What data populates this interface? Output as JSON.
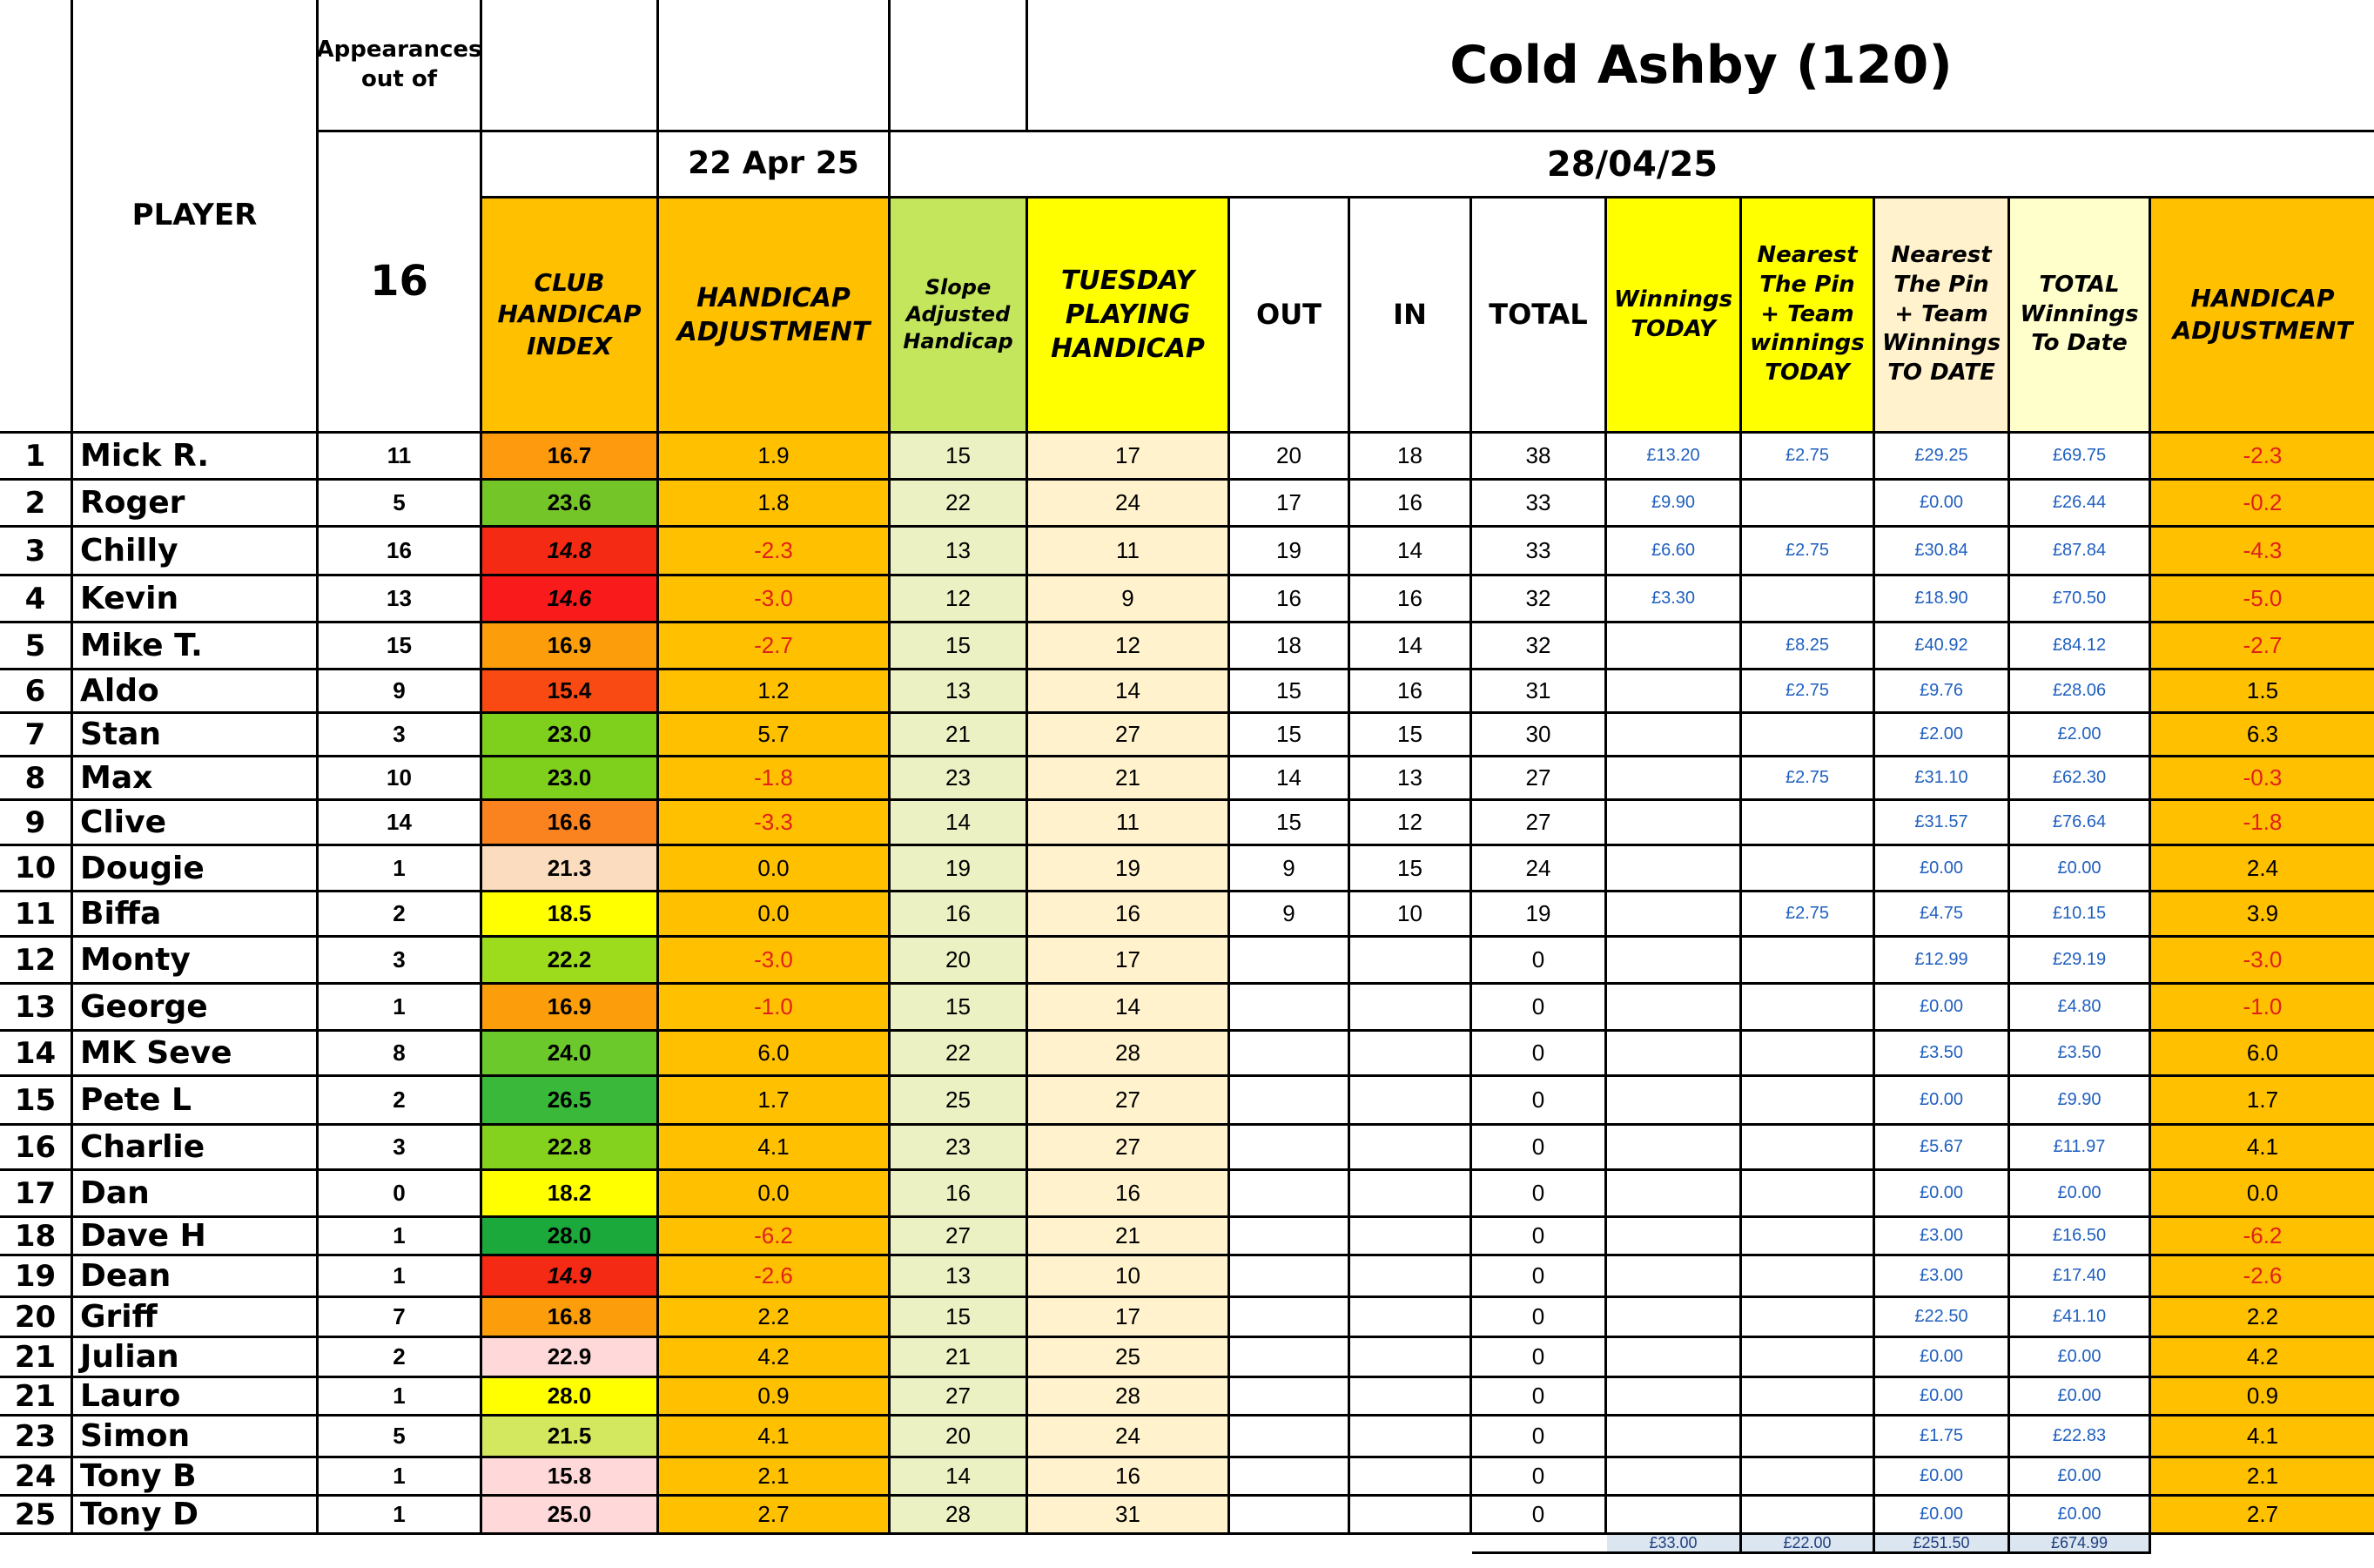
{
  "title": "Cold Ashby (120)",
  "date_prev": "22 Apr 25",
  "date_curr": "28/04/25",
  "appearances_label": "Appearances out of",
  "appearances_total": "16",
  "headers": {
    "player": "PLAYER",
    "club_index": "CLUB HANDICAP INDEX",
    "adj_prev": "HANDICAP ADJUSTMENT",
    "slope": "Slope Adjusted Handicap",
    "tuesday": "TUESDAY PLAYING HANDICAP",
    "out": "OUT",
    "in": "IN",
    "total": "TOTAL",
    "win_today": "Winnings TODAY",
    "ntp_today": "Nearest The Pin + Team winnings TODAY",
    "ntp_date": "Nearest The Pin + Team Winnings TO DATE",
    "total_win": "TOTAL Winnings To Date",
    "adj_new": "HANDICAP ADJUSTMENT"
  },
  "colors": {
    "orange": "#ffc000",
    "yellow": "#ffff00",
    "lightyellow": "#ffffcc",
    "slopegreen": "#c3e65c",
    "cream": "#fff2cc",
    "slopelight": "#ebf1c2",
    "negative": "#e0201b",
    "money": "#1f5fbf",
    "totals_bg": "#dce6f1"
  },
  "rows": [
    {
      "rank": "1",
      "name": "Mick R.",
      "apps": "11",
      "index": "16.7",
      "index_color": "#fd9a0d",
      "adj": "1.9",
      "slope": "15",
      "tues": "17",
      "out": "20",
      "in": "18",
      "total": "38",
      "win": "£13.20",
      "ntp": "£2.75",
      "ntpd": "£29.25",
      "tw": "£69.75",
      "nadj": "-2.3"
    },
    {
      "rank": "2",
      "name": "Roger",
      "apps": "5",
      "index": "23.6",
      "index_color": "#74c628",
      "adj": "1.8",
      "slope": "22",
      "tues": "24",
      "out": "17",
      "in": "16",
      "total": "33",
      "win": "£9.90",
      "ntp": "",
      "ntpd": "£0.00",
      "tw": "£26.44",
      "nadj": "-0.2"
    },
    {
      "rank": "3",
      "name": "Chilly",
      "apps": "16",
      "index": "14.8",
      "index_color": "#f42a15",
      "adj": "-2.3",
      "slope": "13",
      "tues": "11",
      "out": "19",
      "in": "14",
      "total": "33",
      "win": "£6.60",
      "ntp": "£2.75",
      "ntpd": "£30.84",
      "tw": "£87.84",
      "nadj": "-4.3"
    },
    {
      "rank": "4",
      "name": "Kevin",
      "apps": "13",
      "index": "14.6",
      "index_color": "#f91b1b",
      "adj": "-3.0",
      "slope": "12",
      "tues": "9",
      "out": "16",
      "in": "16",
      "total": "32",
      "win": "£3.30",
      "ntp": "",
      "ntpd": "£18.90",
      "tw": "£70.50",
      "nadj": "-5.0"
    },
    {
      "rank": "5",
      "name": "Mike T.",
      "apps": "15",
      "index": "16.9",
      "index_color": "#fc9e0c",
      "adj": "-2.7",
      "slope": "15",
      "tues": "12",
      "out": "18",
      "in": "14",
      "total": "32",
      "win": "",
      "ntp": "£8.25",
      "ntpd": "£40.92",
      "tw": "£84.12",
      "nadj": "-2.7"
    },
    {
      "rank": "6",
      "name": "Aldo",
      "apps": "9",
      "index": "15.4",
      "index_color": "#fa4a14",
      "adj": "1.2",
      "slope": "13",
      "tues": "14",
      "out": "15",
      "in": "16",
      "total": "31",
      "win": "",
      "ntp": "£2.75",
      "ntpd": "£9.76",
      "tw": "£28.06",
      "nadj": "1.5"
    },
    {
      "rank": "7",
      "name": "Stan",
      "apps": "3",
      "index": "23.0",
      "index_color": "#7ed01c",
      "adj": "5.7",
      "slope": "21",
      "tues": "27",
      "out": "15",
      "in": "15",
      "total": "30",
      "win": "",
      "ntp": "",
      "ntpd": "£2.00",
      "tw": "£2.00",
      "nadj": "6.3"
    },
    {
      "rank": "8",
      "name": "Max",
      "apps": "10",
      "index": "23.0",
      "index_color": "#7ed01c",
      "adj": "-1.8",
      "slope": "23",
      "tues": "21",
      "out": "14",
      "in": "13",
      "total": "27",
      "win": "",
      "ntp": "£2.75",
      "ntpd": "£31.10",
      "tw": "£62.30",
      "nadj": "-0.3"
    },
    {
      "rank": "9",
      "name": "Clive",
      "apps": "14",
      "index": "16.6",
      "index_color": "#fa8320",
      "adj": "-3.3",
      "slope": "14",
      "tues": "11",
      "out": "15",
      "in": "12",
      "total": "27",
      "win": "",
      "ntp": "",
      "ntpd": "£31.57",
      "tw": "£76.64",
      "nadj": "-1.8"
    },
    {
      "rank": "10",
      "name": "Dougie",
      "apps": "1",
      "index": "21.3",
      "index_color": "#fcdcbf",
      "adj": "0.0",
      "slope": "19",
      "tues": "19",
      "out": "9",
      "in": "15",
      "total": "24",
      "win": "",
      "ntp": "",
      "ntpd": "£0.00",
      "tw": "£0.00",
      "nadj": "2.4"
    },
    {
      "rank": "11",
      "name": "Biffa",
      "apps": "2",
      "index": "18.5",
      "index_color": "#ffff00",
      "adj": "0.0",
      "slope": "16",
      "tues": "16",
      "out": "9",
      "in": "10",
      "total": "19",
      "win": "",
      "ntp": "£2.75",
      "ntpd": "£4.75",
      "tw": "£10.15",
      "nadj": "3.9"
    },
    {
      "rank": "12",
      "name": "Monty",
      "apps": "3",
      "index": "22.2",
      "index_color": "#9ddc1c",
      "adj": "-3.0",
      "slope": "20",
      "tues": "17",
      "out": "",
      "in": "",
      "total": "0",
      "win": "",
      "ntp": "",
      "ntpd": "£12.99",
      "tw": "£29.19",
      "nadj": "-3.0"
    },
    {
      "rank": "13",
      "name": "George",
      "apps": "1",
      "index": "16.9",
      "index_color": "#fc9e0c",
      "adj": "-1.0",
      "slope": "15",
      "tues": "14",
      "out": "",
      "in": "",
      "total": "0",
      "win": "",
      "ntp": "",
      "ntpd": "£0.00",
      "tw": "£4.80",
      "nadj": "-1.0"
    },
    {
      "rank": "14",
      "name": "MK Seve",
      "apps": "8",
      "index": "24.0",
      "index_color": "#6cc92c",
      "adj": "6.0",
      "slope": "22",
      "tues": "28",
      "out": "",
      "in": "",
      "total": "0",
      "win": "",
      "ntp": "",
      "ntpd": "£3.50",
      "tw": "£3.50",
      "nadj": "6.0"
    },
    {
      "rank": "15",
      "name": "Pete L",
      "apps": "2",
      "index": "26.5",
      "index_color": "#39b83a",
      "adj": "1.7",
      "slope": "25",
      "tues": "27",
      "out": "",
      "in": "",
      "total": "0",
      "win": "",
      "ntp": "",
      "ntpd": "£0.00",
      "tw": "£9.90",
      "nadj": "1.7"
    },
    {
      "rank": "16",
      "name": "Charlie",
      "apps": "3",
      "index": "22.8",
      "index_color": "#85d21e",
      "adj": "4.1",
      "slope": "23",
      "tues": "27",
      "out": "",
      "in": "",
      "total": "0",
      "win": "",
      "ntp": "",
      "ntpd": "£5.67",
      "tw": "£11.97",
      "nadj": "4.1"
    },
    {
      "rank": "17",
      "name": "Dan",
      "apps": "0",
      "index": "18.2",
      "index_color": "#ffff00",
      "adj": "0.0",
      "slope": "16",
      "tues": "16",
      "out": "",
      "in": "",
      "total": "0",
      "win": "",
      "ntp": "",
      "ntpd": "£0.00",
      "tw": "£0.00",
      "nadj": "0.0"
    },
    {
      "rank": "18",
      "name": "Dave H",
      "apps": "1",
      "index": "28.0",
      "index_color": "#1aa93a",
      "adj": "-6.2",
      "slope": "27",
      "tues": "21",
      "out": "",
      "in": "",
      "total": "0",
      "win": "",
      "ntp": "",
      "ntpd": "£3.00",
      "tw": "£16.50",
      "nadj": "-6.2"
    },
    {
      "rank": "19",
      "name": "Dean",
      "apps": "1",
      "index": "14.9",
      "index_color": "#f42a15",
      "adj": "-2.6",
      "slope": "13",
      "tues": "10",
      "out": "",
      "in": "",
      "total": "0",
      "win": "",
      "ntp": "",
      "ntpd": "£3.00",
      "tw": "£17.40",
      "nadj": "-2.6"
    },
    {
      "rank": "20",
      "name": "Griff",
      "apps": "7",
      "index": "16.8",
      "index_color": "#fc9e0c",
      "adj": "2.2",
      "slope": "15",
      "tues": "17",
      "out": "",
      "in": "",
      "total": "0",
      "win": "",
      "ntp": "",
      "ntpd": "£22.50",
      "tw": "£41.10",
      "nadj": "2.2"
    },
    {
      "rank": "21",
      "name": "Julian",
      "apps": "2",
      "index": "22.9",
      "index_color": "#ffd9d9",
      "adj": "4.2",
      "slope": "21",
      "tues": "25",
      "out": "",
      "in": "",
      "total": "0",
      "win": "",
      "ntp": "",
      "ntpd": "£0.00",
      "tw": "£0.00",
      "nadj": "4.2"
    },
    {
      "rank": "21",
      "name": "Lauro",
      "apps": "1",
      "index": "28.0",
      "index_color": "#ffff00",
      "adj": "0.9",
      "slope": "27",
      "tues": "28",
      "out": "",
      "in": "",
      "total": "0",
      "win": "",
      "ntp": "",
      "ntpd": "£0.00",
      "tw": "£0.00",
      "nadj": "0.9"
    },
    {
      "rank": "23",
      "name": "Simon",
      "apps": "5",
      "index": "21.5",
      "index_color": "#d4e85f",
      "adj": "4.1",
      "slope": "20",
      "tues": "24",
      "out": "",
      "in": "",
      "total": "0",
      "win": "",
      "ntp": "",
      "ntpd": "£1.75",
      "tw": "£22.83",
      "nadj": "4.1"
    },
    {
      "rank": "24",
      "name": "Tony B",
      "apps": "1",
      "index": "15.8",
      "index_color": "#ffd9d9",
      "adj": "2.1",
      "slope": "14",
      "tues": "16",
      "out": "",
      "in": "",
      "total": "0",
      "win": "",
      "ntp": "",
      "ntpd": "£0.00",
      "tw": "£0.00",
      "nadj": "2.1"
    },
    {
      "rank": "25",
      "name": "Tony D",
      "apps": "1",
      "index": "25.0",
      "index_color": "#ffd9d9",
      "adj": "2.7",
      "slope": "28",
      "tues": "31",
      "out": "",
      "in": "",
      "total": "0",
      "win": "",
      "ntp": "",
      "ntpd": "£0.00",
      "tw": "£0.00",
      "nadj": "2.7"
    }
  ],
  "totals": {
    "win": "£33.00",
    "ntp": "£22.00",
    "ntpd": "£251.50",
    "tw": "£674.99"
  }
}
